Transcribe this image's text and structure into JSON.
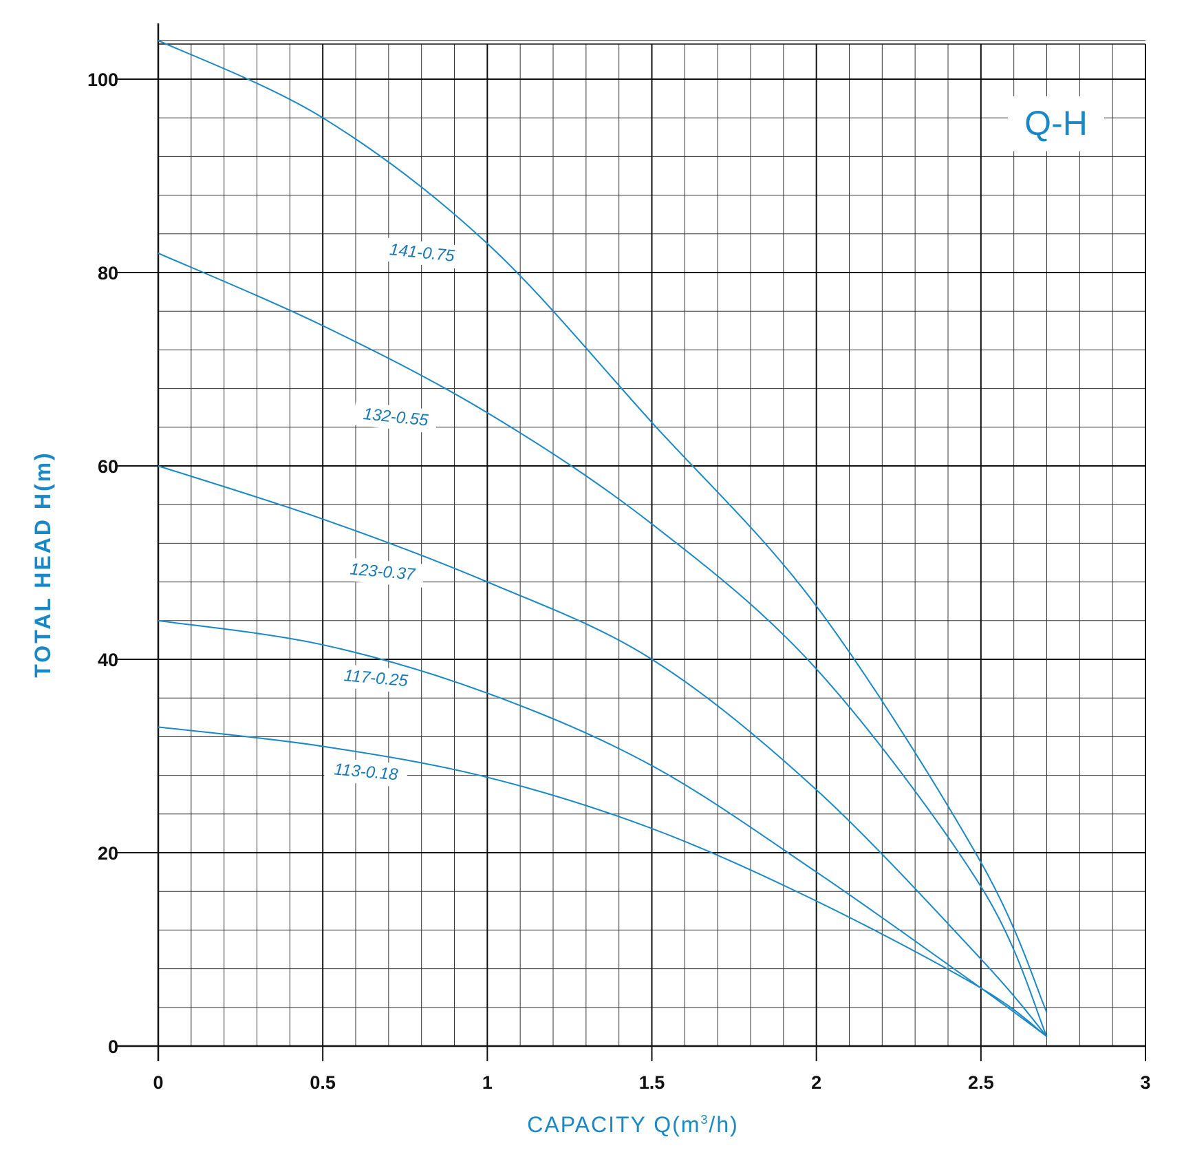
{
  "chart_data": {
    "type": "line",
    "title": "Q-H",
    "xlabel": "CAPACITY  Q(m³/h)",
    "xlabel_base": "CAPACITY  Q(m",
    "xlabel_sup": "3",
    "xlabel_tail": "/h)",
    "ylabel": "TOTAL HEAD H(m)",
    "xlim": [
      0,
      3
    ],
    "ylim": [
      0,
      104
    ],
    "x_ticks": [
      "0",
      "0.5",
      "1",
      "1.5",
      "2",
      "2.5",
      "3"
    ],
    "y_ticks": [
      "0",
      "20",
      "40",
      "60",
      "80",
      "100"
    ],
    "grid": true,
    "series": [
      {
        "name": "141-0.75",
        "x": [
          0,
          0.5,
          1,
          1.5,
          2,
          2.5,
          2.7
        ],
        "y": [
          104,
          96,
          83,
          64.5,
          45.5,
          19,
          3.5
        ]
      },
      {
        "name": "132-0.55",
        "x": [
          0,
          0.5,
          1,
          1.5,
          2,
          2.5,
          2.7
        ],
        "y": [
          82,
          74.5,
          65.5,
          54,
          39,
          16.5,
          1
        ]
      },
      {
        "name": "123-0.37",
        "x": [
          0,
          0.5,
          1,
          1.5,
          2,
          2.5,
          2.7
        ],
        "y": [
          60,
          54.5,
          48,
          40,
          26.5,
          9,
          1
        ]
      },
      {
        "name": "117-0.25",
        "x": [
          0,
          0.5,
          1,
          1.5,
          2,
          2.5,
          2.7
        ],
        "y": [
          44,
          41.5,
          36.5,
          29,
          18,
          6,
          1
        ]
      },
      {
        "name": "113-0.18",
        "x": [
          0,
          0.5,
          1,
          1.5,
          2,
          2.5,
          2.7
        ],
        "y": [
          33,
          31,
          27.8,
          22.5,
          15,
          6,
          1
        ]
      }
    ],
    "color": "#1a88c4"
  }
}
